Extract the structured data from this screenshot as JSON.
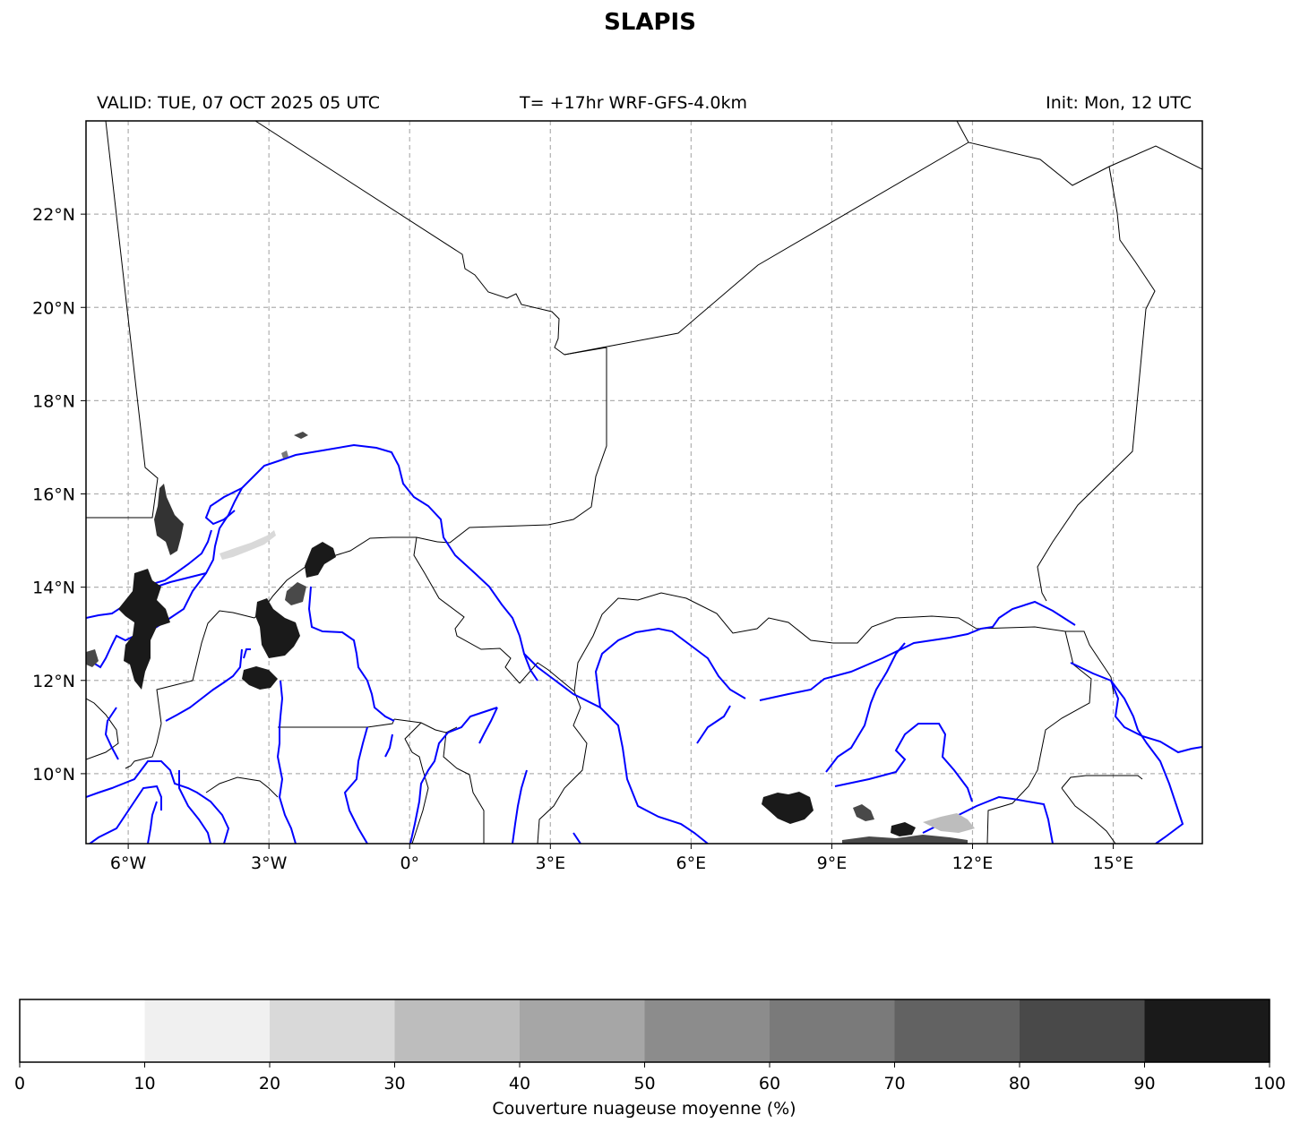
{
  "title": "SLAPIS",
  "subtitle": {
    "valid": "VALID: TUE, 07 OCT 2025 05 UTC",
    "lead": "T= +17hr WRF-GFS-4.0km",
    "init": "Init: Mon, 12 UTC"
  },
  "map": {
    "lon_range": [
      -6.9,
      16.9
    ],
    "lat_range": [
      8.5,
      24.0
    ],
    "lon_ticks": [
      {
        "value": -6,
        "label": "6°W"
      },
      {
        "value": -3,
        "label": "3°W"
      },
      {
        "value": 0,
        "label": "0°"
      },
      {
        "value": 3,
        "label": "3°E"
      },
      {
        "value": 6,
        "label": "6°E"
      },
      {
        "value": 9,
        "label": "9°E"
      },
      {
        "value": 12,
        "label": "12°E"
      },
      {
        "value": 15,
        "label": "15°E"
      }
    ],
    "lat_ticks": [
      {
        "value": 22,
        "label": "22°N"
      },
      {
        "value": 20,
        "label": "20°N"
      },
      {
        "value": 18,
        "label": "18°N"
      },
      {
        "value": 16,
        "label": "16°N"
      },
      {
        "value": 14,
        "label": "14°N"
      },
      {
        "value": 12,
        "label": "12°N"
      },
      {
        "value": 10,
        "label": "10°N"
      }
    ],
    "gridlines": true,
    "colors": {
      "borders": "#000000",
      "rivers": "#0000ff",
      "grid": "#b0b0b0"
    }
  },
  "colorbar": {
    "label": "Couverture nuageuse moyenne (%)",
    "ticks": [
      "0",
      "10",
      "20",
      "30",
      "40",
      "50",
      "60",
      "70",
      "80",
      "90",
      "100"
    ],
    "colors": [
      "#ffffff",
      "#f0f0f0",
      "#d9d9d9",
      "#bdbdbd",
      "#a6a6a6",
      "#8c8c8c",
      "#7a7a7a",
      "#626262",
      "#494949",
      "#1a1a1a"
    ]
  }
}
